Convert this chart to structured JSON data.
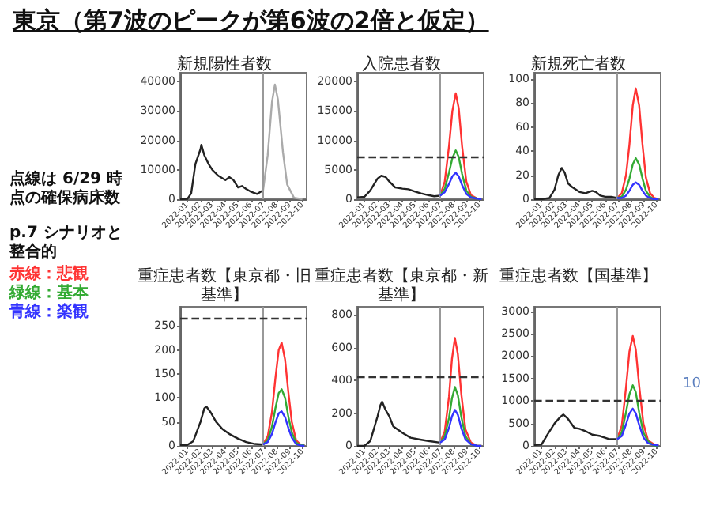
{
  "chart_data": [
    {
      "type": "other",
      "title": "東京（第7波のピークが第6波の2倍と仮定）",
      "annotations": [
        "点線は 6/29 時点の確保病床数",
        "p.7 シナリオと整合的",
        "赤線：悲観",
        "緑線：基本",
        "青線：楽観",
        "10"
      ]
    },
    {
      "type": "line",
      "title": "新規陽性者数",
      "xlim": [
        "2021-12-15",
        "2022-10-10"
      ],
      "xticks": [
        {
          "value": "2022-01-01",
          "label": "2022-01"
        },
        {
          "value": "2022-02-01",
          "label": "2022-02"
        },
        {
          "value": "2022-03-01",
          "label": "2022-03"
        },
        {
          "value": "2022-04-01",
          "label": "2022-04"
        },
        {
          "value": "2022-05-01",
          "label": "2022-05"
        },
        {
          "value": "2022-06-01",
          "label": "2022-06"
        },
        {
          "value": "2022-07-01",
          "label": "2022-07"
        },
        {
          "value": "2022-08-01",
          "label": "2022-08"
        },
        {
          "value": "2022-09-01",
          "label": "2022-09"
        },
        {
          "value": "2022-10-01",
          "label": "2022-10"
        }
      ],
      "ylim": [
        0,
        43000
      ],
      "yticks": [
        0,
        10000,
        20000,
        30000,
        40000
      ],
      "grid": false,
      "ref_lines": [
        {
          "axis": "x",
          "value": "2022-06-29",
          "color": "#999999"
        }
      ],
      "series": [
        {
          "color": "#222222",
          "x": [
            "2021-12-15",
            "2022-01-01",
            "2022-01-10",
            "2022-01-20",
            "2022-02-01",
            "2022-02-03",
            "2022-02-10",
            "2022-02-20",
            "2022-03-01",
            "2022-03-15",
            "2022-04-01",
            "2022-04-10",
            "2022-04-20",
            "2022-05-01",
            "2022-05-10",
            "2022-05-20",
            "2022-06-01",
            "2022-06-15",
            "2022-06-29"
          ],
          "values": [
            0,
            100,
            2000,
            12000,
            17000,
            18500,
            15000,
            12000,
            10000,
            8000,
            6500,
            7500,
            6500,
            4000,
            4500,
            3500,
            2500,
            1800,
            3000
          ]
        },
        {
          "color": "#aaaaaa",
          "x": [
            "2022-06-29",
            "2022-07-10",
            "2022-07-20",
            "2022-07-27",
            "2022-08-03",
            "2022-08-15",
            "2022-08-25",
            "2022-09-10",
            "2022-09-30"
          ],
          "values": [
            3000,
            15000,
            33000,
            39000,
            34000,
            16000,
            5000,
            500,
            0
          ]
        }
      ]
    },
    {
      "type": "line",
      "title": "入院患者数",
      "xlim": [
        "2021-12-15",
        "2022-10-10"
      ],
      "xticks": [
        {
          "value": "2022-01-01",
          "label": "2022-01"
        },
        {
          "value": "2022-02-01",
          "label": "2022-02"
        },
        {
          "value": "2022-03-01",
          "label": "2022-03"
        },
        {
          "value": "2022-04-01",
          "label": "2022-04"
        },
        {
          "value": "2022-05-01",
          "label": "2022-05"
        },
        {
          "value": "2022-06-01",
          "label": "2022-06"
        },
        {
          "value": "2022-07-01",
          "label": "2022-07"
        },
        {
          "value": "2022-08-01",
          "label": "2022-08"
        },
        {
          "value": "2022-09-01",
          "label": "2022-09"
        },
        {
          "value": "2022-10-01",
          "label": "2022-10"
        }
      ],
      "ylim": [
        0,
        21500
      ],
      "yticks": [
        0,
        5000,
        10000,
        15000,
        20000
      ],
      "grid": false,
      "ref_lines": [
        {
          "axis": "x",
          "value": "2022-06-29",
          "color": "#999999"
        },
        {
          "axis": "y",
          "value": 7300,
          "color": "#333333",
          "line_style": "dashed"
        }
      ],
      "series": [
        {
          "color": "#222222",
          "x": [
            "2021-12-15",
            "2022-01-01",
            "2022-01-15",
            "2022-02-01",
            "2022-02-10",
            "2022-02-20",
            "2022-03-01",
            "2022-03-15",
            "2022-04-01",
            "2022-04-15",
            "2022-05-01",
            "2022-05-15",
            "2022-06-01",
            "2022-06-15",
            "2022-06-29"
          ],
          "values": [
            300,
            400,
            1500,
            3500,
            4000,
            3800,
            3000,
            2000,
            1800,
            1700,
            1300,
            1000,
            700,
            500,
            600
          ]
        },
        {
          "color": "#ff3333",
          "x": [
            "2022-06-29",
            "2022-07-10",
            "2022-07-20",
            "2022-07-28",
            "2022-08-05",
            "2022-08-12",
            "2022-08-20",
            "2022-08-30",
            "2022-09-10",
            "2022-09-25",
            "2022-10-05"
          ],
          "values": [
            600,
            3000,
            9000,
            15000,
            18000,
            15500,
            9000,
            3000,
            700,
            100,
            0
          ]
        },
        {
          "color": "#33aa33",
          "x": [
            "2022-06-29",
            "2022-07-10",
            "2022-07-20",
            "2022-07-28",
            "2022-08-05",
            "2022-08-12",
            "2022-08-20",
            "2022-08-30",
            "2022-09-10",
            "2022-09-25",
            "2022-10-05"
          ],
          "values": [
            600,
            1800,
            4500,
            7000,
            8300,
            7200,
            4300,
            1500,
            400,
            100,
            0
          ]
        },
        {
          "color": "#3333ff",
          "x": [
            "2022-06-29",
            "2022-07-10",
            "2022-07-20",
            "2022-07-28",
            "2022-08-05",
            "2022-08-12",
            "2022-08-20",
            "2022-08-30",
            "2022-09-10",
            "2022-09-25",
            "2022-10-05"
          ],
          "values": [
            600,
            1200,
            2600,
            3900,
            4500,
            3900,
            2400,
            900,
            300,
            100,
            0
          ]
        }
      ]
    },
    {
      "type": "line",
      "title": "新規死亡者数",
      "xlim": [
        "2021-12-15",
        "2022-10-10"
      ],
      "xticks": [
        {
          "value": "2022-01-01",
          "label": "2022-01"
        },
        {
          "value": "2022-02-01",
          "label": "2022-02"
        },
        {
          "value": "2022-03-01",
          "label": "2022-03"
        },
        {
          "value": "2022-04-01",
          "label": "2022-04"
        },
        {
          "value": "2022-05-01",
          "label": "2022-05"
        },
        {
          "value": "2022-06-01",
          "label": "2022-06"
        },
        {
          "value": "2022-07-01",
          "label": "2022-07"
        },
        {
          "value": "2022-08-01",
          "label": "2022-08"
        },
        {
          "value": "2022-09-01",
          "label": "2022-09"
        },
        {
          "value": "2022-10-01",
          "label": "2022-10"
        }
      ],
      "ylim": [
        0,
        105
      ],
      "yticks": [
        0,
        20,
        40,
        60,
        80,
        100
      ],
      "grid": false,
      "ref_lines": [
        {
          "axis": "x",
          "value": "2022-06-29",
          "color": "#999999"
        }
      ],
      "series": [
        {
          "color": "#222222",
          "x": [
            "2021-12-15",
            "2022-01-01",
            "2022-01-20",
            "2022-02-01",
            "2022-02-10",
            "2022-02-18",
            "2022-02-25",
            "2022-03-05",
            "2022-03-15",
            "2022-04-01",
            "2022-04-15",
            "2022-05-01",
            "2022-05-10",
            "2022-05-20",
            "2022-06-01",
            "2022-06-15",
            "2022-06-29"
          ],
          "values": [
            0,
            0,
            1,
            8,
            20,
            26,
            22,
            13,
            10,
            6,
            5,
            7,
            6,
            3,
            2,
            2,
            1
          ]
        },
        {
          "color": "#ff3333",
          "x": [
            "2022-06-29",
            "2022-07-10",
            "2022-07-20",
            "2022-07-28",
            "2022-08-05",
            "2022-08-12",
            "2022-08-20",
            "2022-08-28",
            "2022-09-05",
            "2022-09-15",
            "2022-09-25",
            "2022-10-05"
          ],
          "values": [
            1,
            5,
            20,
            45,
            78,
            92,
            78,
            45,
            18,
            5,
            1,
            0
          ]
        },
        {
          "color": "#33aa33",
          "x": [
            "2022-06-29",
            "2022-07-10",
            "2022-07-20",
            "2022-07-28",
            "2022-08-05",
            "2022-08-12",
            "2022-08-20",
            "2022-08-28",
            "2022-09-05",
            "2022-09-15",
            "2022-09-25",
            "2022-10-05"
          ],
          "values": [
            1,
            2,
            8,
            17,
            29,
            34,
            29,
            17,
            7,
            2,
            0,
            0
          ]
        },
        {
          "color": "#3333ff",
          "x": [
            "2022-06-29",
            "2022-07-10",
            "2022-07-20",
            "2022-07-28",
            "2022-08-05",
            "2022-08-12",
            "2022-08-20",
            "2022-08-28",
            "2022-09-05",
            "2022-09-15",
            "2022-09-25",
            "2022-10-05"
          ],
          "values": [
            1,
            1,
            3,
            7,
            12,
            14,
            12,
            7,
            3,
            1,
            0,
            0
          ]
        }
      ]
    },
    {
      "type": "line",
      "title": "重症患者数【東京都・旧基準】",
      "xlim": [
        "2021-12-15",
        "2022-10-10"
      ],
      "xticks": [
        {
          "value": "2022-01-01",
          "label": "2022-01"
        },
        {
          "value": "2022-02-01",
          "label": "2022-02"
        },
        {
          "value": "2022-03-01",
          "label": "2022-03"
        },
        {
          "value": "2022-04-01",
          "label": "2022-04"
        },
        {
          "value": "2022-05-01",
          "label": "2022-05"
        },
        {
          "value": "2022-06-01",
          "label": "2022-06"
        },
        {
          "value": "2022-07-01",
          "label": "2022-07"
        },
        {
          "value": "2022-08-01",
          "label": "2022-08"
        },
        {
          "value": "2022-09-01",
          "label": "2022-09"
        },
        {
          "value": "2022-10-01",
          "label": "2022-10"
        }
      ],
      "ylim": [
        0,
        290
      ],
      "yticks": [
        0,
        50,
        100,
        150,
        200,
        250
      ],
      "grid": false,
      "ref_lines": [
        {
          "axis": "x",
          "value": "2022-06-29",
          "color": "#999999"
        },
        {
          "axis": "y",
          "value": 265,
          "color": "#333333",
          "line_style": "dashed"
        }
      ],
      "series": [
        {
          "color": "#222222",
          "x": [
            "2021-12-15",
            "2022-01-01",
            "2022-01-15",
            "2022-02-01",
            "2022-02-10",
            "2022-02-15",
            "2022-02-25",
            "2022-03-10",
            "2022-03-25",
            "2022-04-10",
            "2022-05-01",
            "2022-05-20",
            "2022-06-10",
            "2022-06-29"
          ],
          "values": [
            2,
            2,
            10,
            50,
            78,
            82,
            70,
            50,
            35,
            25,
            15,
            8,
            4,
            3
          ]
        },
        {
          "color": "#ff3333",
          "x": [
            "2022-06-29",
            "2022-07-10",
            "2022-07-20",
            "2022-07-28",
            "2022-08-05",
            "2022-08-12",
            "2022-08-20",
            "2022-08-28",
            "2022-09-05",
            "2022-09-15",
            "2022-09-25",
            "2022-10-05"
          ],
          "values": [
            3,
            20,
            70,
            140,
            200,
            215,
            180,
            110,
            50,
            12,
            3,
            1
          ]
        },
        {
          "color": "#33aa33",
          "x": [
            "2022-06-29",
            "2022-07-10",
            "2022-07-20",
            "2022-07-28",
            "2022-08-05",
            "2022-08-12",
            "2022-08-20",
            "2022-08-28",
            "2022-09-05",
            "2022-09-15",
            "2022-09-25",
            "2022-10-05"
          ],
          "values": [
            3,
            12,
            40,
            78,
            110,
            118,
            100,
            60,
            28,
            7,
            2,
            1
          ]
        },
        {
          "color": "#3333ff",
          "x": [
            "2022-06-29",
            "2022-07-10",
            "2022-07-20",
            "2022-07-28",
            "2022-08-05",
            "2022-08-12",
            "2022-08-20",
            "2022-08-28",
            "2022-09-05",
            "2022-09-15",
            "2022-09-25",
            "2022-10-05"
          ],
          "values": [
            3,
            8,
            25,
            48,
            68,
            72,
            60,
            37,
            17,
            4,
            1,
            0
          ]
        }
      ]
    },
    {
      "type": "line",
      "title": "重症患者数【東京都・新基準】",
      "xlim": [
        "2021-12-15",
        "2022-10-10"
      ],
      "xticks": [
        {
          "value": "2022-01-01",
          "label": "2022-01"
        },
        {
          "value": "2022-02-01",
          "label": "2022-02"
        },
        {
          "value": "2022-03-01",
          "label": "2022-03"
        },
        {
          "value": "2022-04-01",
          "label": "2022-04"
        },
        {
          "value": "2022-05-01",
          "label": "2022-05"
        },
        {
          "value": "2022-06-01",
          "label": "2022-06"
        },
        {
          "value": "2022-07-01",
          "label": "2022-07"
        },
        {
          "value": "2022-08-01",
          "label": "2022-08"
        },
        {
          "value": "2022-09-01",
          "label": "2022-09"
        },
        {
          "value": "2022-10-01",
          "label": "2022-10"
        }
      ],
      "ylim": [
        0,
        850
      ],
      "yticks": [
        0,
        200,
        400,
        600,
        800
      ],
      "grid": false,
      "ref_lines": [
        {
          "axis": "x",
          "value": "2022-06-29",
          "color": "#999999"
        },
        {
          "axis": "y",
          "value": 420,
          "color": "#333333",
          "line_style": "dashed"
        }
      ],
      "series": [
        {
          "color": "#222222",
          "x": [
            "2021-12-15",
            "2022-01-01",
            "2022-01-15",
            "2022-02-01",
            "2022-02-08",
            "2022-02-12",
            "2022-02-20",
            "2022-03-01",
            "2022-03-10",
            "2022-04-01",
            "2022-04-20",
            "2022-05-10",
            "2022-06-01",
            "2022-06-29"
          ],
          "values": [
            0,
            0,
            30,
            180,
            250,
            270,
            220,
            180,
            120,
            80,
            50,
            40,
            30,
            20
          ]
        },
        {
          "color": "#ff3333",
          "x": [
            "2022-06-29",
            "2022-07-10",
            "2022-07-20",
            "2022-07-27",
            "2022-08-03",
            "2022-08-10",
            "2022-08-18",
            "2022-08-28",
            "2022-09-10",
            "2022-09-25",
            "2022-10-05"
          ],
          "values": [
            20,
            90,
            300,
            530,
            660,
            560,
            320,
            100,
            20,
            0,
            0
          ]
        },
        {
          "color": "#33aa33",
          "x": [
            "2022-06-29",
            "2022-07-10",
            "2022-07-20",
            "2022-07-27",
            "2022-08-03",
            "2022-08-10",
            "2022-08-18",
            "2022-08-28",
            "2022-09-10",
            "2022-09-25",
            "2022-10-05"
          ],
          "values": [
            20,
            60,
            170,
            290,
            360,
            310,
            180,
            60,
            10,
            0,
            0
          ]
        },
        {
          "color": "#3333ff",
          "x": [
            "2022-06-29",
            "2022-07-10",
            "2022-07-20",
            "2022-07-27",
            "2022-08-03",
            "2022-08-10",
            "2022-08-18",
            "2022-08-28",
            "2022-09-10",
            "2022-09-25",
            "2022-10-05"
          ],
          "values": [
            20,
            40,
            110,
            180,
            220,
            190,
            110,
            40,
            10,
            0,
            0
          ]
        }
      ]
    },
    {
      "type": "line",
      "title": "重症患者数【国基準】",
      "xlim": [
        "2021-12-15",
        "2022-10-10"
      ],
      "xticks": [
        {
          "value": "2022-01-01",
          "label": "2022-01"
        },
        {
          "value": "2022-02-01",
          "label": "2022-02"
        },
        {
          "value": "2022-03-01",
          "label": "2022-03"
        },
        {
          "value": "2022-04-01",
          "label": "2022-04"
        },
        {
          "value": "2022-05-01",
          "label": "2022-05"
        },
        {
          "value": "2022-06-01",
          "label": "2022-06"
        },
        {
          "value": "2022-07-01",
          "label": "2022-07"
        },
        {
          "value": "2022-08-01",
          "label": "2022-08"
        },
        {
          "value": "2022-09-01",
          "label": "2022-09"
        },
        {
          "value": "2022-10-01",
          "label": "2022-10"
        }
      ],
      "ylim": [
        0,
        3100
      ],
      "yticks": [
        0,
        500,
        1000,
        1500,
        2000,
        2500,
        3000
      ],
      "grid": false,
      "ref_lines": [
        {
          "axis": "x",
          "value": "2022-06-29",
          "color": "#999999"
        },
        {
          "axis": "y",
          "value": 1000,
          "color": "#333333",
          "line_style": "dashed"
        }
      ],
      "series": [
        {
          "color": "#222222",
          "x": [
            "2021-12-15",
            "2022-01-01",
            "2022-01-15",
            "2022-02-01",
            "2022-02-15",
            "2022-02-22",
            "2022-03-05",
            "2022-03-20",
            "2022-04-01",
            "2022-04-15",
            "2022-05-01",
            "2022-05-20",
            "2022-06-10",
            "2022-06-29"
          ],
          "values": [
            20,
            30,
            250,
            500,
            650,
            700,
            600,
            400,
            380,
            330,
            250,
            220,
            150,
            150
          ]
        },
        {
          "color": "#ff3333",
          "x": [
            "2022-06-29",
            "2022-07-10",
            "2022-07-20",
            "2022-07-28",
            "2022-08-05",
            "2022-08-12",
            "2022-08-20",
            "2022-08-30",
            "2022-09-10",
            "2022-09-25",
            "2022-10-05"
          ],
          "values": [
            150,
            450,
            1300,
            2100,
            2450,
            2150,
            1350,
            500,
            120,
            30,
            20
          ]
        },
        {
          "color": "#33aa33",
          "x": [
            "2022-06-29",
            "2022-07-10",
            "2022-07-20",
            "2022-07-28",
            "2022-08-05",
            "2022-08-12",
            "2022-08-20",
            "2022-08-30",
            "2022-09-10",
            "2022-09-25",
            "2022-10-05"
          ],
          "values": [
            150,
            300,
            750,
            1150,
            1350,
            1200,
            750,
            300,
            100,
            0,
            0
          ]
        },
        {
          "color": "#3333ff",
          "x": [
            "2022-06-29",
            "2022-07-10",
            "2022-07-20",
            "2022-07-28",
            "2022-08-05",
            "2022-08-12",
            "2022-08-20",
            "2022-08-30",
            "2022-09-10",
            "2022-09-25",
            "2022-10-05"
          ],
          "values": [
            150,
            220,
            480,
            720,
            830,
            730,
            470,
            190,
            60,
            20,
            10
          ]
        }
      ]
    }
  ]
}
